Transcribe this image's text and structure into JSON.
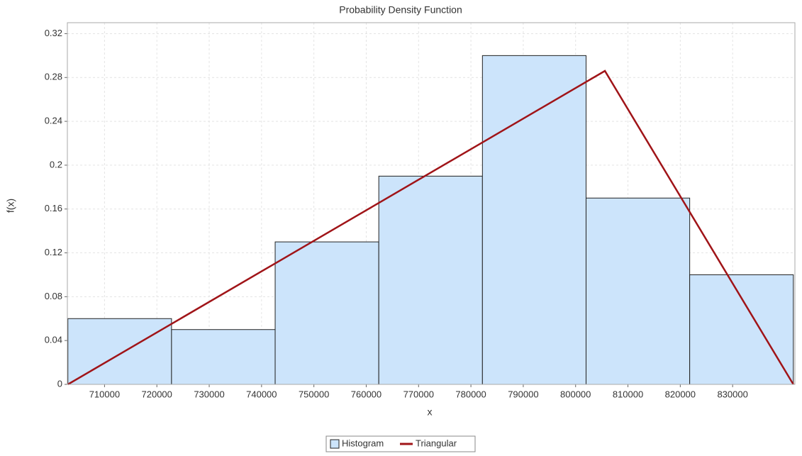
{
  "chart_data": {
    "type": "histogram",
    "title": "Probability Density Function",
    "x_label": "x",
    "y_label": "f(x)",
    "histogram": {
      "name": "Histogram",
      "color": "#cce4fb",
      "bins": [
        703000,
        722800,
        742600,
        762400,
        782200,
        802000,
        821800,
        841600
      ],
      "values": [
        0.06,
        0.05,
        0.13,
        0.19,
        0.3,
        0.17,
        0.1
      ]
    },
    "line": {
      "name": "Triangular",
      "color": "#a01418",
      "x": [
        703000,
        805600,
        841600
      ],
      "values": [
        0,
        0.286,
        0
      ]
    },
    "xlim": [
      702900,
      841900
    ],
    "xticks": [
      710000,
      720000,
      730000,
      740000,
      750000,
      760000,
      770000,
      780000,
      790000,
      800000,
      810000,
      820000,
      830000
    ],
    "ylim": [
      0,
      0.33
    ],
    "yticks": [
      0,
      0.04,
      0.08,
      0.12,
      0.16,
      0.2,
      0.24,
      0.28,
      0.32
    ],
    "grid": true,
    "legend": "bottom"
  }
}
